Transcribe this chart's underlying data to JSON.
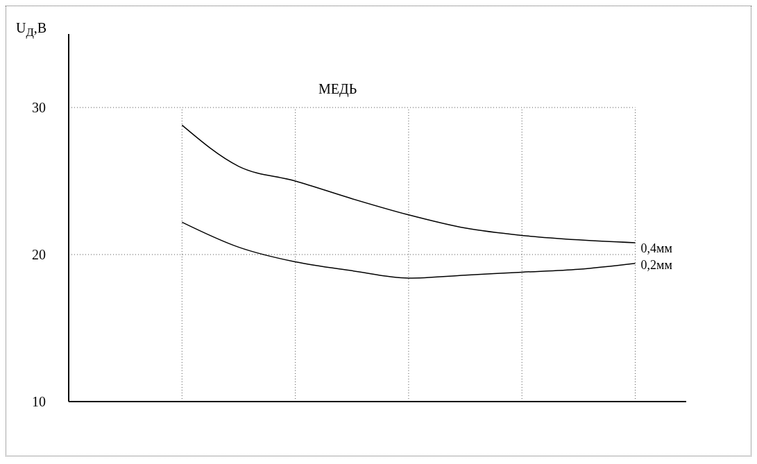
{
  "chart_data": {
    "type": "line",
    "title": "МЕДЬ",
    "ylabel": "U$_{Д}$,В",
    "categories": [
      null,
      null,
      null,
      null,
      null,
      null,
      null,
      null,
      null,
      null,
      null
    ],
    "series": [
      {
        "name": "0,4мм",
        "color": "#000000",
        "values": [
          null,
          null,
          28.8,
          26.0,
          25.0,
          23.8,
          22.7,
          21.8,
          21.3,
          21.0,
          20.8
        ]
      },
      {
        "name": "0,2мм",
        "color": "#000000",
        "values": [
          null,
          null,
          22.2,
          20.5,
          19.5,
          18.9,
          18.4,
          18.6,
          18.8,
          19.0,
          19.4
        ]
      }
    ],
    "ylim": [
      10,
      35
    ],
    "yticks": [
      10,
      20,
      30
    ],
    "grid": true,
    "marker": "none",
    "line_style": "solid"
  }
}
